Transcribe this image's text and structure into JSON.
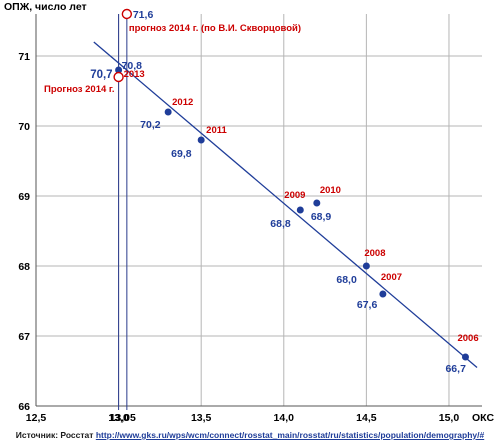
{
  "chart_data": {
    "type": "scatter",
    "title": "",
    "ylabel": "ОПЖ, число лет",
    "xlabel": "ОКС",
    "xlim": [
      12.5,
      15.2
    ],
    "ylim": [
      66,
      71.6
    ],
    "x_ticks": [
      "12,5",
      "13,0",
      "13,5",
      "14,0",
      "14,5",
      "15,0"
    ],
    "y_ticks": [
      "66",
      "67",
      "68",
      "69",
      "70",
      "71"
    ],
    "grid": true,
    "colors": {
      "point": "#1f3d99",
      "line": "#1f3d99",
      "year": "#cc0000",
      "value": "#1f3d99",
      "forecast": "#cc0000",
      "forecast_value": "#1f3d99",
      "vline": "#2a3a8c"
    },
    "points": [
      {
        "x": 15.1,
        "y": 66.7,
        "year": "2006",
        "value_label": "66,7"
      },
      {
        "x": 14.6,
        "y": 67.6,
        "year": "2007",
        "value_label": "67,6"
      },
      {
        "x": 14.5,
        "y": 68.0,
        "year": "2008",
        "value_label": "68,0"
      },
      {
        "x": 14.1,
        "y": 68.8,
        "year": "2009",
        "value_label": "68,8"
      },
      {
        "x": 14.2,
        "y": 68.9,
        "year": "2010",
        "value_label": "68,9"
      },
      {
        "x": 13.5,
        "y": 69.8,
        "year": "2011",
        "value_label": "69,8"
      },
      {
        "x": 13.3,
        "y": 70.2,
        "year": "2012",
        "value_label": "70,2"
      },
      {
        "x": 13.0,
        "y": 70.8,
        "year": "2013",
        "value_label": "70,8"
      }
    ],
    "forecasts": [
      {
        "x": 13.0,
        "y": 70.7,
        "label": "Прогноз 2014 г.",
        "value_label": "70,7"
      },
      {
        "x": 13.05,
        "y": 71.6,
        "label": "прогноз 2014 г. (по В.И. Скворцовой)",
        "value_label": "71,6"
      }
    ],
    "trendline": {
      "x": [
        12.85,
        15.17
      ],
      "y": [
        71.2,
        66.55
      ]
    },
    "vlines": [
      13.0,
      13.05
    ],
    "vline_label": "13,05"
  },
  "source": {
    "prefix": "Источник: Росстат",
    "url_text": "http://www.gks.ru/wps/wcm/connect/rosstat_main/rosstat/ru/statistics/population/demography/#"
  }
}
